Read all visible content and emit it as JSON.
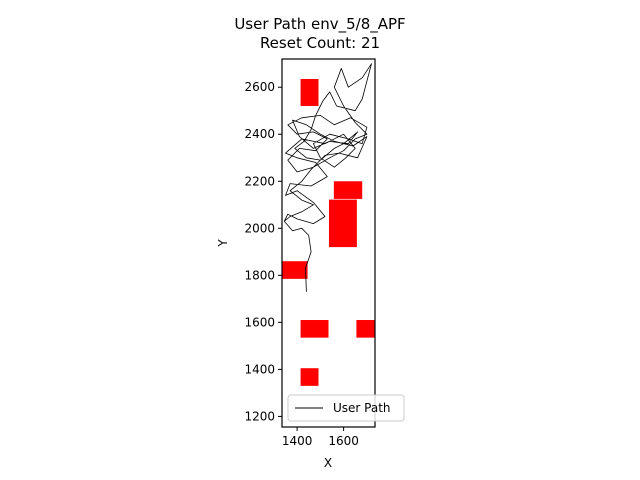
{
  "chart_data": {
    "type": "line",
    "title": "User Path env_5/8_APF",
    "subtitle": "Reset Count: 21",
    "xlabel": "X",
    "ylabel": "Y",
    "xlim": [
      1335,
      1735
    ],
    "ylim": [
      1155,
      2720
    ],
    "xticks": [
      1400,
      1600
    ],
    "yticks": [
      1200,
      1400,
      1600,
      1800,
      2000,
      2200,
      2400,
      2600
    ],
    "grid": false,
    "legend": {
      "position": "lower-right",
      "entries": [
        "User Path"
      ]
    },
    "colors": {
      "path": "#000000",
      "obstacle": "#ff0000",
      "frame": "#000000"
    },
    "obstacles": [
      {
        "x": [
          1415,
          1492
        ],
        "y": [
          2520,
          2635
        ]
      },
      {
        "x": [
          1558,
          1680
        ],
        "y": [
          2125,
          2200
        ]
      },
      {
        "x": [
          1537,
          1657
        ],
        "y": [
          1920,
          2122
        ]
      },
      {
        "x": [
          1335,
          1445
        ],
        "y": [
          1785,
          1860
        ]
      },
      {
        "x": [
          1415,
          1535
        ],
        "y": [
          1535,
          1610
        ]
      },
      {
        "x": [
          1655,
          1735
        ],
        "y": [
          1535,
          1610
        ]
      },
      {
        "x": [
          1415,
          1492
        ],
        "y": [
          1330,
          1405
        ]
      }
    ],
    "series": [
      {
        "name": "User Path",
        "points": [
          [
            1440,
            1730
          ],
          [
            1436,
            1830
          ],
          [
            1460,
            1900
          ],
          [
            1450,
            1970
          ],
          [
            1420,
            2000
          ],
          [
            1380,
            1990
          ],
          [
            1345,
            2030
          ],
          [
            1360,
            2060
          ],
          [
            1400,
            2040
          ],
          [
            1470,
            2020
          ],
          [
            1520,
            2050
          ],
          [
            1470,
            2110
          ],
          [
            1400,
            2160
          ],
          [
            1350,
            2140
          ],
          [
            1370,
            2190
          ],
          [
            1460,
            2180
          ],
          [
            1530,
            2220
          ],
          [
            1480,
            2280
          ],
          [
            1400,
            2300
          ],
          [
            1350,
            2320
          ],
          [
            1420,
            2380
          ],
          [
            1520,
            2360
          ],
          [
            1600,
            2400
          ],
          [
            1650,
            2340
          ],
          [
            1610,
            2300
          ],
          [
            1560,
            2260
          ],
          [
            1500,
            2300
          ],
          [
            1470,
            2360
          ],
          [
            1540,
            2400
          ],
          [
            1620,
            2380
          ],
          [
            1680,
            2360
          ],
          [
            1700,
            2430
          ],
          [
            1630,
            2470
          ],
          [
            1560,
            2440
          ],
          [
            1500,
            2480
          ],
          [
            1420,
            2470
          ],
          [
            1360,
            2440
          ],
          [
            1400,
            2400
          ],
          [
            1470,
            2410
          ],
          [
            1530,
            2380
          ],
          [
            1480,
            2330
          ],
          [
            1410,
            2340
          ],
          [
            1360,
            2290
          ],
          [
            1400,
            2240
          ],
          [
            1470,
            2260
          ],
          [
            1540,
            2300
          ],
          [
            1600,
            2330
          ],
          [
            1650,
            2380
          ],
          [
            1700,
            2400
          ],
          [
            1650,
            2450
          ],
          [
            1600,
            2520
          ],
          [
            1560,
            2600
          ],
          [
            1590,
            2680
          ],
          [
            1620,
            2600
          ],
          [
            1680,
            2640
          ],
          [
            1720,
            2700
          ],
          [
            1680,
            2550
          ],
          [
            1650,
            2500
          ],
          [
            1570,
            2520
          ],
          [
            1540,
            2580
          ],
          [
            1510,
            2540
          ],
          [
            1480,
            2480
          ],
          [
            1460,
            2420
          ],
          [
            1430,
            2370
          ],
          [
            1390,
            2340
          ],
          [
            1440,
            2300
          ],
          [
            1500,
            2290
          ],
          [
            1560,
            2340
          ],
          [
            1600,
            2360
          ],
          [
            1660,
            2410
          ],
          [
            1620,
            2360
          ],
          [
            1540,
            2370
          ],
          [
            1470,
            2340
          ],
          [
            1410,
            2390
          ],
          [
            1380,
            2460
          ],
          [
            1440,
            2440
          ],
          [
            1500,
            2400
          ],
          [
            1560,
            2370
          ],
          [
            1640,
            2350
          ],
          [
            1700,
            2390
          ],
          [
            1660,
            2300
          ],
          [
            1580,
            2320
          ],
          [
            1520,
            2310
          ],
          [
            1460,
            2250
          ],
          [
            1420,
            2200
          ],
          [
            1370,
            2160
          ],
          [
            1420,
            2120
          ],
          [
            1470,
            2100
          ],
          [
            1420,
            2070
          ],
          [
            1370,
            2050
          ],
          [
            1345,
            2030
          ]
        ]
      }
    ]
  }
}
